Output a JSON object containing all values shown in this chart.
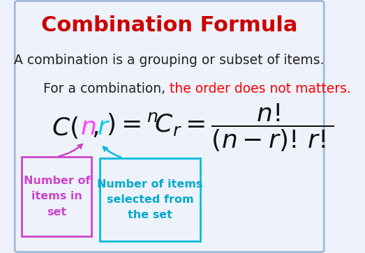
{
  "title": "Combination Formula",
  "title_color": "#CC0000",
  "title_fontsize": 22,
  "line1": "A combination is a grouping or subset of items.",
  "line2_black": "For a combination, ",
  "line2_red": "the order does not matters.",
  "line2_red_color": "#FF0000",
  "text_fontsize": 13.5,
  "formula_fontsize": 26,
  "bg_color": "#EEF2FA",
  "border_color": "#A0B8D8",
  "box1_border": "#CC44CC",
  "box1_text_color": "#CC44CC",
  "box1_text": "Number of\nitems in\nset",
  "box2_border": "#00BBDD",
  "box2_text_color": "#00AACC",
  "box2_text": "Number of items\nselected from\nthe set",
  "n_color": "#FF44FF",
  "r_color": "#00CCEE",
  "arrow1_color": "#CC44CC",
  "arrow2_color": "#00BBDD"
}
